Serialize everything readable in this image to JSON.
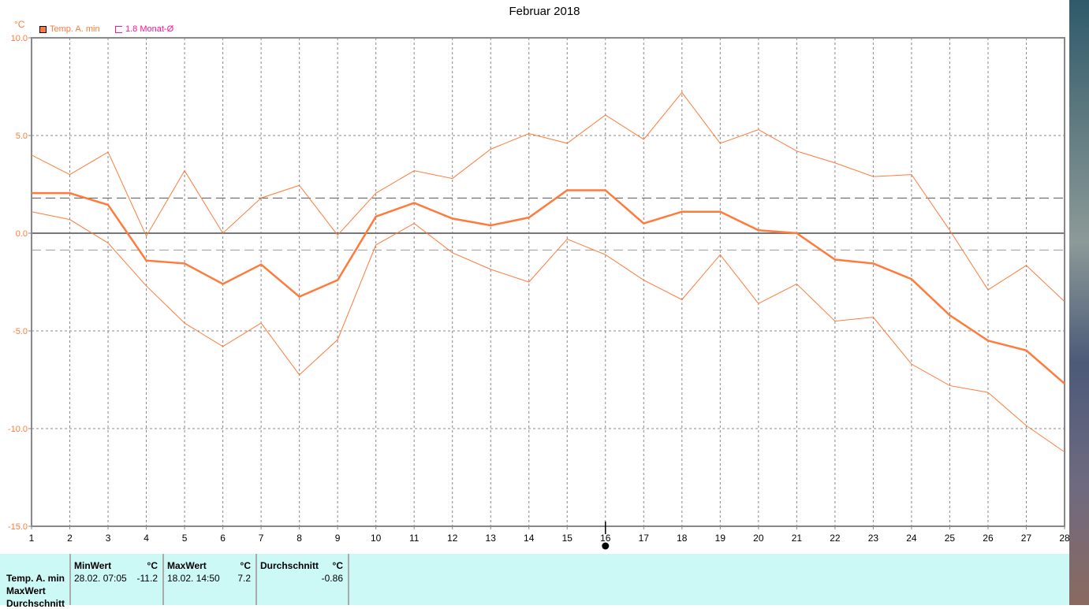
{
  "chart_data": {
    "type": "line",
    "title": "Februar 2018",
    "ylabel": "°C",
    "ylim": [
      -15,
      10
    ],
    "yticks": [
      "10.0",
      "5.0",
      "0.0",
      "-5.0",
      "-10.0",
      "-15.0"
    ],
    "ytick_values": [
      10,
      5,
      0,
      -5,
      -10,
      -15
    ],
    "x": [
      1,
      2,
      3,
      4,
      5,
      6,
      7,
      8,
      9,
      10,
      11,
      12,
      13,
      14,
      15,
      16,
      17,
      18,
      19,
      20,
      21,
      22,
      23,
      24,
      25,
      26,
      27,
      28
    ],
    "grid": true,
    "legend_position": "top-left",
    "series": [
      {
        "name": "Temp. A. min",
        "color": "#ff7b3b",
        "width": "thick",
        "values": [
          2.05,
          2.05,
          1.45,
          -1.4,
          -1.55,
          -2.6,
          -1.6,
          -3.25,
          -2.4,
          0.85,
          1.55,
          0.75,
          0.4,
          0.8,
          2.2,
          2.2,
          0.5,
          1.1,
          1.1,
          0.15,
          0,
          -1.35,
          -1.55,
          -2.35,
          -4.2,
          -5.5,
          -6.0,
          -7.7
        ]
      },
      {
        "color": "#ff7b3b",
        "width": "thin",
        "values": [
          4.0,
          3.0,
          4.15,
          -0.15,
          3.2,
          0,
          1.8,
          2.45,
          -0.1,
          2.05,
          3.2,
          2.8,
          4.3,
          5.1,
          4.6,
          6.05,
          4.8,
          7.2,
          4.6,
          5.3,
          4.2,
          3.6,
          2.9,
          3.0,
          0.15,
          -2.9,
          -1.65,
          -3.5
        ]
      },
      {
        "color": "#ff7b3b",
        "width": "thin",
        "values": [
          1.1,
          0.7,
          -0.5,
          -2.7,
          -4.6,
          -5.8,
          -4.6,
          -7.25,
          -5.45,
          -0.6,
          0.5,
          -1.0,
          -1.85,
          -2.5,
          -0.3,
          -1.1,
          -2.4,
          -3.4,
          -1.1,
          -3.6,
          -2.6,
          -4.5,
          -4.3,
          -6.7,
          -7.8,
          -8.15,
          -9.85,
          -11.2
        ]
      }
    ],
    "reference_lines": [
      {
        "label": "1.8 Monat-Ø",
        "value": 1.8,
        "color": "#ff1493"
      },
      {
        "value": -0.86,
        "color": "#999999"
      }
    ],
    "cursor_day": 16
  },
  "legend": {
    "series_label": "Temp. A. min",
    "ref_label": "1.8 Monat-Ø"
  },
  "table": {
    "row_labels": [
      "Temp. A. min",
      "MaxWert",
      "Durchschnitt"
    ],
    "columns": [
      {
        "header": "MinWert",
        "unit": "°C",
        "time": "28.02.  07:05",
        "value": "-11.2"
      },
      {
        "header": "MaxWert",
        "unit": "°C",
        "time": "18.02.  14:50",
        "value": "7.2"
      },
      {
        "header": "Durchschnitt",
        "unit": "°C",
        "time": "",
        "value": "-0.86"
      }
    ]
  }
}
